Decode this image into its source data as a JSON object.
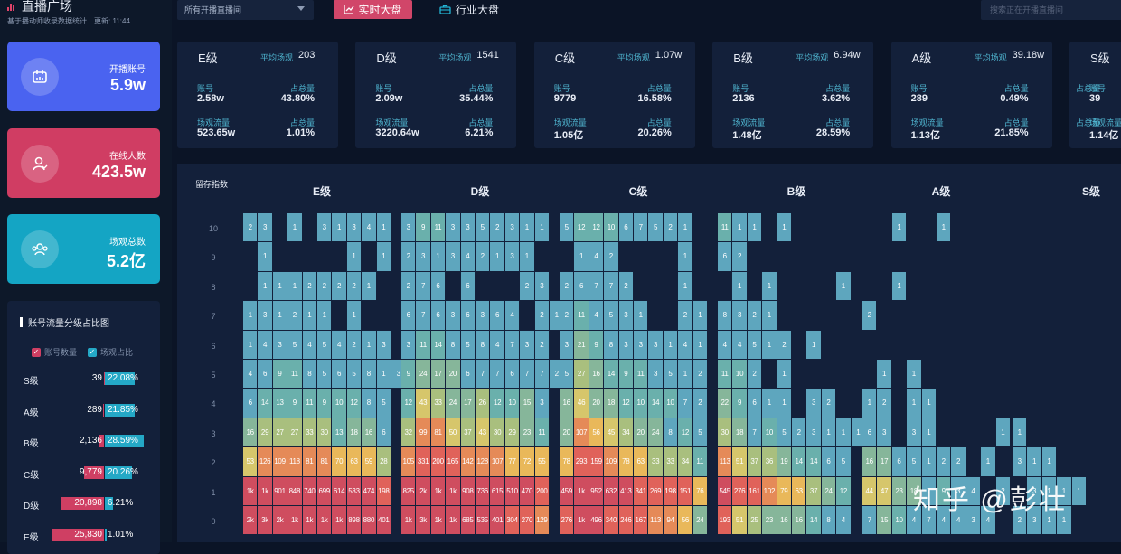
{
  "app": {
    "title": "直播广场",
    "subtitle": "基于播动师收录数据统计",
    "update_label": "更新:",
    "update_time": "11:44"
  },
  "stats": [
    {
      "label": "开播账号",
      "value": "5.9w",
      "color": "#4a63f0",
      "icon": "calendar-icon"
    },
    {
      "label": "在线人数",
      "value": "423.5w",
      "color": "#d03d63",
      "icon": "person-icon"
    },
    {
      "label": "场观总数",
      "value": "5.2亿",
      "color": "#14a5c4",
      "icon": "group-icon"
    }
  ],
  "dist": {
    "title": "账号流量分级占比图",
    "legend_count": "账号数量",
    "legend_share": "场观占比",
    "rows": [
      {
        "grade": "S级",
        "count": "39",
        "share": "22.08%",
        "count_num": 39,
        "share_num": 22.08
      },
      {
        "grade": "A级",
        "count": "289",
        "share": "21.85%",
        "count_num": 289,
        "share_num": 21.85
      },
      {
        "grade": "B级",
        "count": "2,136",
        "share": "28.59%",
        "count_num": 2136,
        "share_num": 28.59
      },
      {
        "grade": "C级",
        "count": "9,779",
        "share": "20.26%",
        "count_num": 9779,
        "share_num": 20.26
      },
      {
        "grade": "D级",
        "count": "20,898",
        "share": "6.21%",
        "count_num": 20898,
        "share_num": 6.21
      },
      {
        "grade": "E级",
        "count": "25,830",
        "share": "1.01%",
        "count_num": 25830,
        "share_num": 1.01
      }
    ]
  },
  "toolbar": {
    "dropdown_value": "所有开播直播间",
    "tab_realtime": "实时大盘",
    "tab_industry": "行业大盘",
    "search_placeholder": "搜索正在开播直播间"
  },
  "cards": [
    {
      "grade": "E级",
      "avg_label": "平均场观",
      "avg": "203",
      "acct_label": "账号",
      "acct": "2.58w",
      "share_label": "占总量",
      "acct_share": "43.80%",
      "flow_label": "场观流量",
      "flow": "523.65w",
      "flow_share": "1.01%"
    },
    {
      "grade": "D级",
      "avg_label": "平均场观",
      "avg": "1541",
      "acct_label": "账号",
      "acct": "2.09w",
      "share_label": "占总量",
      "acct_share": "35.44%",
      "flow_label": "场观流量",
      "flow": "3220.64w",
      "flow_share": "6.21%"
    },
    {
      "grade": "C级",
      "avg_label": "平均场观",
      "avg": "1.07w",
      "acct_label": "账号",
      "acct": "9779",
      "share_label": "占总量",
      "acct_share": "16.58%",
      "flow_label": "场观流量",
      "flow": "1.05亿",
      "flow_share": "20.26%"
    },
    {
      "grade": "B级",
      "avg_label": "平均场观",
      "avg": "6.94w",
      "acct_label": "账号",
      "acct": "2136",
      "share_label": "占总量",
      "acct_share": "3.62%",
      "flow_label": "场观流量",
      "flow": "1.48亿",
      "flow_share": "28.59%"
    },
    {
      "grade": "A级",
      "avg_label": "平均场观",
      "avg": "39.18w",
      "acct_label": "账号",
      "acct": "289",
      "share_label": "占总量",
      "acct_share": "0.49%",
      "flow_label": "场观流量",
      "flow": "1.13亿",
      "flow_share": "21.85%"
    },
    {
      "grade": "S级",
      "avg_label": "平均场观",
      "avg": "",
      "acct_label": "账号",
      "acct": "39",
      "share_label": "占总量",
      "acct_share": "",
      "flow_label": "场观流量",
      "flow": "1.14亿",
      "flow_share": ""
    }
  ],
  "heatmap": {
    "title": "留存指数",
    "y_labels": [
      "10",
      "9",
      "8",
      "7",
      "6",
      "5",
      "4",
      "3",
      "2",
      "1",
      "0"
    ],
    "groups": [
      {
        "name": "E级",
        "rows": [
          [
            "2",
            "3",
            "",
            "1",
            "",
            "3",
            "1",
            "3",
            "4",
            "1"
          ],
          [
            "",
            "1",
            "",
            "",
            "",
            "",
            "",
            "1",
            "",
            "1"
          ],
          [
            "",
            "1",
            "1",
            "1",
            "2",
            "2",
            "2",
            "2",
            "1",
            ""
          ],
          [
            "1",
            "3",
            "1",
            "2",
            "1",
            "1",
            "",
            "1",
            "",
            ""
          ],
          [
            "1",
            "4",
            "3",
            "5",
            "4",
            "5",
            "4",
            "2",
            "1",
            "3"
          ],
          [
            "4",
            "6",
            "9",
            "11",
            "8",
            "5",
            "6",
            "5",
            "8",
            "1",
            "3"
          ],
          [
            "6",
            "14",
            "13",
            "9",
            "11",
            "9",
            "10",
            "12",
            "8",
            "5"
          ],
          [
            "16",
            "29",
            "27",
            "27",
            "33",
            "30",
            "13",
            "18",
            "16",
            "6"
          ],
          [
            "53",
            "126",
            "109",
            "118",
            "81",
            "81",
            "70",
            "63",
            "59",
            "28"
          ],
          [
            "1k",
            "1k",
            "901",
            "848",
            "740",
            "699",
            "614",
            "533",
            "474",
            "198"
          ],
          [
            "2k",
            "3k",
            "2k",
            "1k",
            "1k",
            "1k",
            "1k",
            "898",
            "880",
            "401"
          ]
        ]
      },
      {
        "name": "D级",
        "rows": [
          [
            "3",
            "9",
            "11",
            "3",
            "3",
            "5",
            "2",
            "3",
            "1",
            "1"
          ],
          [
            "2",
            "3",
            "1",
            "3",
            "4",
            "2",
            "1",
            "3",
            "1",
            ""
          ],
          [
            "2",
            "7",
            "6",
            "",
            "6",
            "",
            "",
            "",
            "2",
            "3"
          ],
          [
            "6",
            "7",
            "6",
            "3",
            "6",
            "3",
            "6",
            "4",
            "",
            "2",
            "1"
          ],
          [
            "3",
            "11",
            "14",
            "8",
            "5",
            "8",
            "4",
            "7",
            "3",
            "2"
          ],
          [
            "9",
            "24",
            "17",
            "20",
            "6",
            "7",
            "7",
            "6",
            "7",
            "7",
            "2"
          ],
          [
            "12",
            "43",
            "33",
            "24",
            "17",
            "26",
            "12",
            "10",
            "15",
            "3"
          ],
          [
            "32",
            "99",
            "81",
            "50",
            "37",
            "43",
            "30",
            "29",
            "23",
            "11"
          ],
          [
            "105",
            "331",
            "200",
            "165",
            "142",
            "128",
            "107",
            "77",
            "72",
            "55"
          ],
          [
            "825",
            "2k",
            "1k",
            "1k",
            "908",
            "736",
            "615",
            "510",
            "470",
            "200"
          ],
          [
            "1k",
            "3k",
            "1k",
            "1k",
            "685",
            "535",
            "401",
            "304",
            "270",
            "129"
          ]
        ]
      },
      {
        "name": "C级",
        "rows": [
          [
            "5",
            "12",
            "12",
            "10",
            "6",
            "7",
            "5",
            "2",
            "1",
            ""
          ],
          [
            "",
            "1",
            "4",
            "2",
            "",
            "",
            "",
            "",
            "1",
            ""
          ],
          [
            "2",
            "6",
            "7",
            "7",
            "2",
            "",
            "",
            "",
            "1",
            ""
          ],
          [
            "2",
            "11",
            "4",
            "5",
            "3",
            "1",
            "",
            "",
            "2",
            "1"
          ],
          [
            "3",
            "21",
            "9",
            "8",
            "3",
            "3",
            "3",
            "1",
            "4",
            "1"
          ],
          [
            "5",
            "27",
            "16",
            "14",
            "9",
            "11",
            "3",
            "5",
            "1",
            "2"
          ],
          [
            "16",
            "46",
            "20",
            "18",
            "12",
            "10",
            "14",
            "10",
            "7",
            "2"
          ],
          [
            "20",
            "107",
            "56",
            "45",
            "34",
            "20",
            "24",
            "8",
            "12",
            "5"
          ],
          [
            "78",
            "293",
            "159",
            "109",
            "78",
            "63",
            "33",
            "33",
            "34",
            "11"
          ],
          [
            "459",
            "1k",
            "952",
            "632",
            "413",
            "341",
            "269",
            "198",
            "151",
            "76"
          ],
          [
            "276",
            "1k",
            "496",
            "340",
            "246",
            "167",
            "113",
            "94",
            "56",
            "24"
          ]
        ]
      },
      {
        "name": "B级",
        "rows": [
          [
            "11",
            "1",
            "1",
            "",
            "1",
            "",
            "",
            "",
            "",
            ""
          ],
          [
            "6",
            "2",
            "",
            "",
            "",
            "",
            "",
            "",
            "",
            ""
          ],
          [
            "",
            "1",
            "",
            "1",
            "",
            "",
            "",
            "",
            "1",
            ""
          ],
          [
            "8",
            "3",
            "2",
            "1",
            "",
            "",
            "",
            "",
            "",
            ""
          ],
          [
            "4",
            "4",
            "5",
            "1",
            "2",
            "",
            "1",
            "",
            "",
            ""
          ],
          [
            "11",
            "10",
            "2",
            "",
            "1",
            "",
            "",
            "",
            "",
            ""
          ],
          [
            "22",
            "9",
            "6",
            "1",
            "1",
            "",
            "3",
            "2",
            "",
            ""
          ],
          [
            "30",
            "18",
            "7",
            "10",
            "5",
            "2",
            "3",
            "1",
            "1",
            "1"
          ],
          [
            "113",
            "51",
            "37",
            "36",
            "19",
            "14",
            "14",
            "6",
            "5",
            ""
          ],
          [
            "545",
            "276",
            "161",
            "102",
            "79",
            "63",
            "37",
            "24",
            "12",
            ""
          ],
          [
            "193",
            "51",
            "25",
            "23",
            "16",
            "16",
            "14",
            "8",
            "4",
            ""
          ]
        ]
      },
      {
        "name": "A级",
        "rows": [
          [
            "",
            "",
            "1",
            "",
            "",
            "1",
            "",
            "",
            "",
            ""
          ],
          [
            "",
            "",
            "",
            "",
            "",
            "",
            "",
            "",
            "",
            ""
          ],
          [
            "",
            "",
            "1",
            "",
            "",
            "",
            "",
            "",
            "",
            ""
          ],
          [
            "2",
            "",
            "",
            "",
            "",
            "",
            "",
            "",
            "",
            ""
          ],
          [
            "",
            "",
            "",
            "",
            "",
            "",
            "",
            "",
            "",
            ""
          ],
          [
            "",
            "1",
            "",
            "1",
            "",
            "",
            "",
            "",
            "",
            ""
          ],
          [
            "1",
            "2",
            "",
            "1",
            "1",
            "",
            "",
            "",
            "",
            ""
          ],
          [
            "6",
            "3",
            "",
            "3",
            "1",
            "",
            "",
            "",
            "",
            "1"
          ],
          [
            "16",
            "17",
            "6",
            "5",
            "1",
            "2",
            "2",
            "",
            "1",
            ""
          ],
          [
            "44",
            "47",
            "23",
            "18",
            "7",
            "9",
            "3",
            "4",
            "",
            "2"
          ],
          [
            "7",
            "15",
            "10",
            "4",
            "7",
            "4",
            "4",
            "3",
            "4",
            ""
          ]
        ]
      },
      {
        "name": "S级",
        "rows": [
          [
            "",
            "",
            "",
            "",
            "",
            "",
            "",
            "",
            "",
            ""
          ],
          [
            "",
            "",
            "",
            "",
            "",
            "",
            "",
            "",
            "",
            ""
          ],
          [
            "",
            "",
            "",
            "",
            "",
            "",
            "",
            "",
            "",
            ""
          ],
          [
            "",
            "",
            "",
            "",
            "",
            "",
            "",
            "",
            "",
            ""
          ],
          [
            "",
            "",
            "",
            "",
            "",
            "",
            "",
            "",
            "",
            ""
          ],
          [
            "",
            "",
            "",
            "",
            "",
            "",
            "",
            "",
            "",
            ""
          ],
          [
            "",
            "",
            "",
            "",
            "",
            "",
            "",
            "",
            "",
            ""
          ],
          [
            "1",
            "",
            "",
            "",
            "",
            "",
            "",
            "",
            "",
            ""
          ],
          [
            "3",
            "1",
            "1",
            "",
            "",
            "",
            "",
            "",
            "",
            ""
          ],
          [
            "",
            "3",
            "1",
            "1",
            "1",
            "",
            "",
            "",
            "",
            ""
          ],
          [
            "2",
            "3",
            "1",
            "1",
            "",
            "",
            "",
            "",
            "",
            ""
          ]
        ]
      }
    ]
  },
  "watermark": "知乎 @彭壮"
}
